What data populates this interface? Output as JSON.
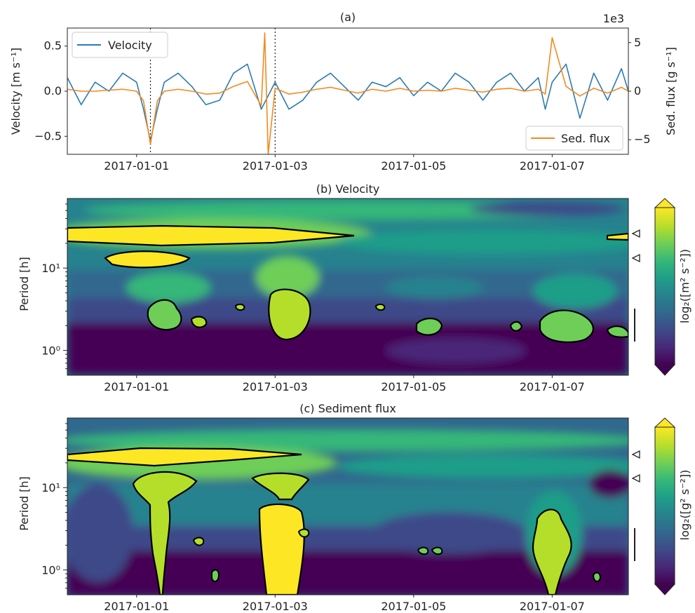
{
  "chart_data": [
    {
      "panel": "a",
      "type": "line",
      "title": "(a)",
      "ylabel_left": "Velocity [m s⁻¹]",
      "ylabel_right": "Sed. flux [g s⁻¹]",
      "right_multiplier": "1e3",
      "x_ticks": [
        "2017-01-01",
        "2017-01-03",
        "2017-01-05",
        "2017-01-07"
      ],
      "y_ticks_left": [
        "0.5",
        "0.0",
        "−0.5"
      ],
      "y_ticks_right": [
        "5",
        "0",
        "−5"
      ],
      "ylim_left": [
        -0.7,
        0.7
      ],
      "ylim_right": [
        -6.5,
        6.5
      ],
      "xlim_days": [
        -1,
        7.1
      ],
      "vlines_days": [
        0.2,
        2.0
      ],
      "legend_top_left": "Velocity",
      "legend_bottom_right": "Sed. flux",
      "series": [
        {
          "name": "Velocity",
          "color": "#2b7bb5",
          "x": [
            -1.0,
            -0.8,
            -0.6,
            -0.4,
            -0.2,
            0.0,
            0.1,
            0.2,
            0.3,
            0.4,
            0.6,
            0.8,
            1.0,
            1.2,
            1.4,
            1.6,
            1.8,
            2.0,
            2.2,
            2.4,
            2.6,
            2.8,
            3.0,
            3.2,
            3.4,
            3.6,
            3.8,
            4.0,
            4.2,
            4.4,
            4.6,
            4.8,
            5.0,
            5.2,
            5.4,
            5.6,
            5.8,
            5.9,
            6.0,
            6.2,
            6.4,
            6.6,
            6.8,
            7.0,
            7.1
          ],
          "values": [
            0.15,
            -0.15,
            0.1,
            0.0,
            0.2,
            0.1,
            -0.2,
            -0.55,
            -0.2,
            0.1,
            0.2,
            0.05,
            -0.15,
            -0.1,
            0.2,
            0.3,
            -0.2,
            0.1,
            -0.2,
            -0.1,
            0.1,
            0.2,
            0.05,
            -0.1,
            0.1,
            0.05,
            0.15,
            -0.05,
            0.1,
            0.0,
            0.2,
            0.1,
            -0.1,
            0.1,
            0.2,
            0.0,
            0.15,
            -0.2,
            0.1,
            0.3,
            -0.3,
            0.2,
            -0.1,
            0.25,
            0.0
          ]
        },
        {
          "name": "Sed. flux",
          "color": "#f28a1f",
          "x": [
            -1.0,
            -0.8,
            -0.6,
            -0.4,
            -0.2,
            0.0,
            0.1,
            0.2,
            0.3,
            0.4,
            0.6,
            0.8,
            1.0,
            1.2,
            1.4,
            1.6,
            1.8,
            1.85,
            1.9,
            2.0,
            2.2,
            2.4,
            2.6,
            2.8,
            3.0,
            3.2,
            3.4,
            3.6,
            3.8,
            4.0,
            4.2,
            4.4,
            4.6,
            4.8,
            5.0,
            5.2,
            5.4,
            5.6,
            5.8,
            5.9,
            6.0,
            6.2,
            6.4,
            6.6,
            6.8,
            7.0,
            7.1
          ],
          "values": [
            0.2,
            0.0,
            0.0,
            0.1,
            0.2,
            0.0,
            -1.0,
            -5.5,
            -1.0,
            0.0,
            0.2,
            0.0,
            -0.3,
            -0.2,
            0.5,
            1.0,
            -1.5,
            6.0,
            -6.5,
            0.3,
            -0.3,
            -0.1,
            0.2,
            0.4,
            0.1,
            -0.2,
            0.2,
            0.0,
            0.3,
            0.0,
            0.1,
            0.0,
            0.3,
            0.1,
            -0.1,
            0.2,
            0.3,
            0.0,
            0.2,
            -0.3,
            5.5,
            0.5,
            -0.5,
            0.3,
            -0.2,
            0.4,
            0.0
          ]
        }
      ]
    },
    {
      "panel": "b",
      "type": "heatmap",
      "title": "(b) Velocity",
      "ylabel": "Period [h]",
      "colorbar_label": "log₂([m² s⁻²])",
      "x_ticks": [
        "2017-01-01",
        "2017-01-03",
        "2017-01-05",
        "2017-01-07"
      ],
      "y_ticks": [
        "10¹",
        "10⁰"
      ],
      "colormap": [
        "#440154",
        "#482878",
        "#3e4a89",
        "#31688e",
        "#26828e",
        "#1f9e89",
        "#35b779",
        "#6ece58",
        "#b5de2b",
        "#fde725"
      ]
    },
    {
      "panel": "c",
      "type": "heatmap",
      "title": "(c) Sediment flux",
      "ylabel": "Period [h]",
      "colorbar_label": "log₂([g² s⁻²])",
      "x_ticks": [
        "2017-01-01",
        "2017-01-03",
        "2017-01-05",
        "2017-01-07"
      ],
      "y_ticks": [
        "10¹",
        "10⁰"
      ],
      "colormap": [
        "#440154",
        "#482878",
        "#3e4a89",
        "#31688e",
        "#26828e",
        "#1f9e89",
        "#35b779",
        "#6ece58",
        "#b5de2b",
        "#fde725"
      ]
    }
  ]
}
